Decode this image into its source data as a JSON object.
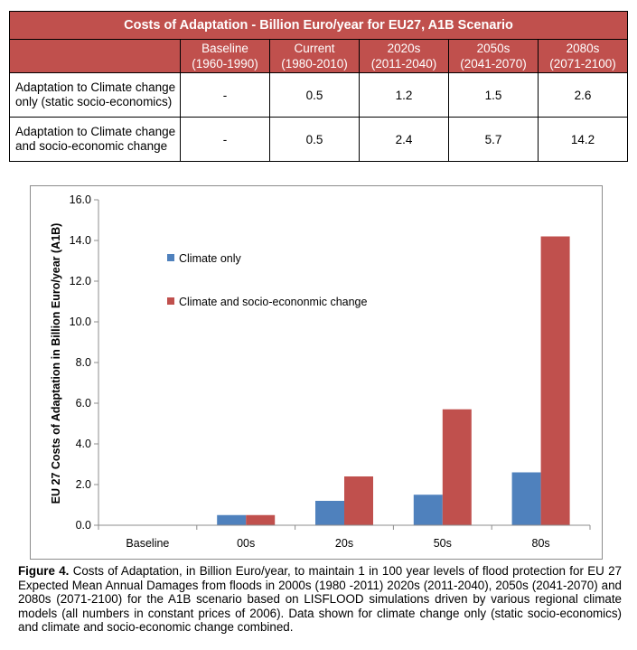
{
  "table": {
    "title": "Costs of Adaptation - Billion Euro/year for EU27, A1B Scenario",
    "headers": [
      {
        "line1": "Baseline",
        "line2": "(1960-1990)"
      },
      {
        "line1": "Current",
        "line2": "(1980-2010)"
      },
      {
        "line1": "2020s",
        "line2": "(2011-2040)"
      },
      {
        "line1": "2050s",
        "line2": "(2041-2070)"
      },
      {
        "line1": "2080s",
        "line2": "(2071-2100)"
      }
    ],
    "rows": [
      {
        "label": "Adaptation to Climate change only (static socio-economics)",
        "values": [
          "-",
          "0.5",
          "1.2",
          "1.5",
          "2.6"
        ]
      },
      {
        "label": "Adaptation to Climate change and socio-economic change",
        "values": [
          "-",
          "0.5",
          "2.4",
          "5.7",
          "14.2"
        ]
      }
    ]
  },
  "chart_data": {
    "type": "bar",
    "title": "",
    "xlabel": "",
    "ylabel": "EU 27 Costs of Adaptation in Billion Euro/year (A1B)",
    "categories": [
      "Baseline",
      "00s",
      "20s",
      "50s",
      "80s"
    ],
    "ylim": [
      0,
      16
    ],
    "yticks": [
      "0.0",
      "2.0",
      "4.0",
      "6.0",
      "8.0",
      "10.0",
      "12.0",
      "14.0",
      "16.0"
    ],
    "grid": false,
    "legend_position": "top-left (inside plot)",
    "series": [
      {
        "name": "Climate only",
        "color": "#4f81bd",
        "values": [
          0,
          0.5,
          1.2,
          1.5,
          2.6
        ]
      },
      {
        "name": "Climate  and socio-econonmic change",
        "color": "#c0504d",
        "values": [
          0,
          0.5,
          2.4,
          5.7,
          14.2
        ]
      }
    ]
  },
  "caption": {
    "label": "Figure 4.",
    "text": "Costs of Adaptation, in Billion Euro/year, to maintain 1 in 100 year levels of flood protection for EU 27 Expected Mean Annual Damages from floods in 2000s (1980 -2011) 2020s (2011-2040), 2050s (2041-2070) and 2080s (2071-2100) for the A1B scenario based on LISFLOOD simulations driven by various regional climate models (all numbers in constant prices of 2006). Data shown for climate change only (static socio-economics) and climate and socio-economic change combined."
  }
}
